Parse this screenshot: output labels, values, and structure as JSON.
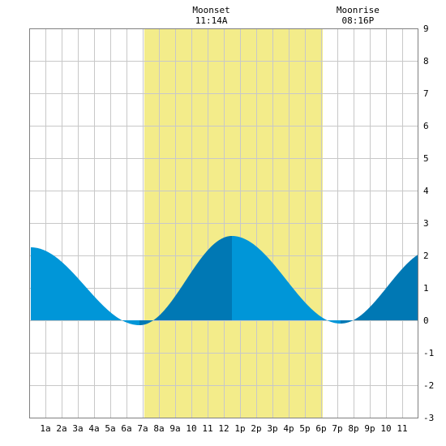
{
  "chart_data": {
    "type": "area",
    "title": "",
    "xlabel": "",
    "ylabel": "",
    "xlim": [
      0,
      24
    ],
    "ylim": [
      -3,
      9
    ],
    "grid": true,
    "x_tick_labels": [
      "1a",
      "2a",
      "3a",
      "4a",
      "5a",
      "6a",
      "7a",
      "8a",
      "9a",
      "10",
      "11",
      "12",
      "1p",
      "2p",
      "3p",
      "4p",
      "5p",
      "6p",
      "7p",
      "8p",
      "9p",
      "10",
      "11"
    ],
    "y_tick_labels": [
      "-3",
      "-2",
      "-1",
      "0",
      "1",
      "2",
      "3",
      "4",
      "5",
      "6",
      "7",
      "8",
      "9"
    ],
    "daylight": {
      "start": 7.1,
      "end": 18.1
    },
    "events": [
      {
        "label": "Moonset",
        "time": "11:14A",
        "x": 11.23
      },
      {
        "label": "Moonrise",
        "time": "08:16P",
        "x": 20.27
      }
    ],
    "extremes": [
      {
        "x": 0.1,
        "y": 2.25
      },
      {
        "x": 6.8,
        "y": -0.15
      },
      {
        "x": 12.5,
        "y": 2.6
      },
      {
        "x": 19.2,
        "y": -0.1
      },
      {
        "x": 25.0,
        "y": 2.2
      }
    ],
    "colors": {
      "daylight": "#f3ec8a",
      "tide_light": "#0096d8",
      "tide_dark": "#0078b4",
      "grid": "#c8c8c8"
    }
  }
}
